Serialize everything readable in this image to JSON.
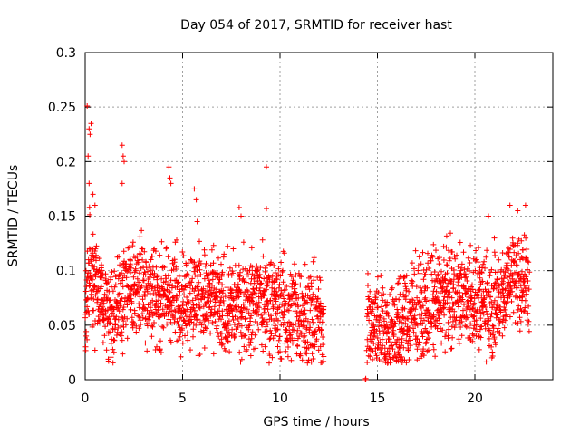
{
  "chart_data": {
    "type": "scatter",
    "title": "Day 054 of 2017, SRMTID for receiver hast",
    "xlabel": "GPS time / hours",
    "ylabel": "SRMTID / TECUs",
    "xlim": [
      0,
      24
    ],
    "ylim": [
      0,
      0.3
    ],
    "x_ticks": [
      "0",
      "5",
      "10",
      "15",
      "20"
    ],
    "y_ticks": [
      "0",
      "0.05",
      "0.1",
      "0.15",
      "0.2",
      "0.25",
      "0.3"
    ],
    "grid": true,
    "legend": "none",
    "marker": "+",
    "series_color": "#ff0000",
    "sample_interval_hours": 0.0125,
    "segments": [
      {
        "start": 0.0,
        "end": 12.25
      },
      {
        "start": 14.3,
        "end": 14.45
      },
      {
        "start": 14.45,
        "end": 22.8
      }
    ],
    "trend_hours": [
      0,
      0.3,
      0.6,
      1.0,
      1.5,
      2.0,
      3.0,
      4.0,
      5.0,
      6.0,
      7.0,
      8.0,
      9.0,
      10.0,
      11.0,
      12.0,
      12.25,
      14.5,
      15.0,
      15.5,
      16.0,
      17.0,
      18.0,
      19.0,
      20.0,
      21.0,
      22.0,
      22.8
    ],
    "trend_values": [
      0.06,
      0.11,
      0.09,
      0.065,
      0.065,
      0.08,
      0.085,
      0.075,
      0.075,
      0.075,
      0.065,
      0.07,
      0.075,
      0.065,
      0.06,
      0.055,
      0.055,
      0.055,
      0.05,
      0.045,
      0.05,
      0.06,
      0.075,
      0.08,
      0.075,
      0.065,
      0.1,
      0.085
    ],
    "spikes": [
      {
        "x": 0.1,
        "y": 0.251
      },
      {
        "x": 0.2,
        "y": 0.23
      },
      {
        "x": 0.25,
        "y": 0.225
      },
      {
        "x": 0.3,
        "y": 0.235
      },
      {
        "x": 0.15,
        "y": 0.205
      },
      {
        "x": 0.2,
        "y": 0.18
      },
      {
        "x": 0.4,
        "y": 0.17
      },
      {
        "x": 0.5,
        "y": 0.16
      },
      {
        "x": 1.9,
        "y": 0.215
      },
      {
        "x": 1.95,
        "y": 0.205
      },
      {
        "x": 2.0,
        "y": 0.2
      },
      {
        "x": 1.9,
        "y": 0.18
      },
      {
        "x": 4.3,
        "y": 0.195
      },
      {
        "x": 4.35,
        "y": 0.185
      },
      {
        "x": 4.4,
        "y": 0.18
      },
      {
        "x": 5.6,
        "y": 0.175
      },
      {
        "x": 5.7,
        "y": 0.165
      },
      {
        "x": 5.75,
        "y": 0.145
      },
      {
        "x": 9.3,
        "y": 0.195
      },
      {
        "x": 9.3,
        "y": 0.157
      },
      {
        "x": 7.9,
        "y": 0.158
      },
      {
        "x": 8.0,
        "y": 0.15
      },
      {
        "x": 21.8,
        "y": 0.16
      },
      {
        "x": 22.2,
        "y": 0.155
      },
      {
        "x": 22.6,
        "y": 0.16
      },
      {
        "x": 20.7,
        "y": 0.15
      },
      {
        "x": 21.0,
        "y": 0.13
      },
      {
        "x": 0.05,
        "y": 0.04
      },
      {
        "x": 1.2,
        "y": 0.017
      },
      {
        "x": 0.5,
        "y": 0.027
      },
      {
        "x": 8.5,
        "y": 0.022
      },
      {
        "x": 15.8,
        "y": 0.02
      },
      {
        "x": 14.4,
        "y": 0.0
      },
      {
        "x": 14.4,
        "y": 0.001
      },
      {
        "x": 14.38,
        "y": 0.0
      }
    ]
  }
}
